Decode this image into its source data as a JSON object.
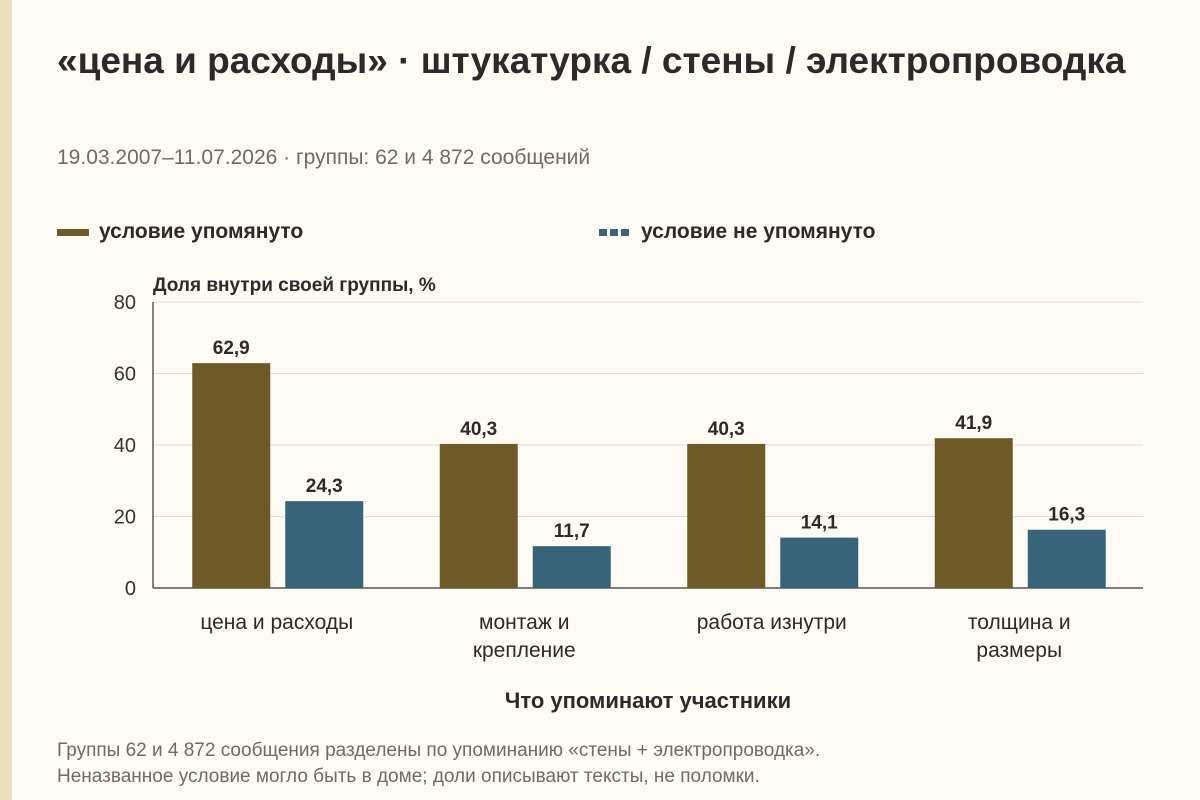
{
  "header": {
    "title": "«цена и расходы» · штукатурка / стены / электропроводка",
    "subtitle": "19.03.2007–11.07.2026 · группы: 62 и 4 872 сообщений"
  },
  "footnote": {
    "line1": "Группы 62 и 4 872 сообщения разделены по упоминанию «стены + электропроводка».",
    "line2": "Неназванное условие могло быть в доме; доли описывают тексты, не поломки."
  },
  "colors": {
    "series_a": "#6e5a27",
    "series_b": "#376479",
    "grid": "#dcdcdc",
    "axis": "#333333"
  },
  "chart_data": {
    "type": "bar",
    "title": "«цена и расходы» · штукатурка / стены / электропроводка",
    "subtitle": "19.03.2007–11.07.2026 · группы: 62 и 4 872 сообщений",
    "xlabel": "Что упоминают участники",
    "ylabel": "Доля внутри своей группы, %",
    "ylim": [
      0,
      80
    ],
    "yticks": [
      0,
      20,
      40,
      60,
      80
    ],
    "grid": true,
    "legend_position": "top",
    "categories": [
      [
        "цена и расходы"
      ],
      [
        "монтаж и",
        "крепление"
      ],
      [
        "работа изнутри"
      ],
      [
        "толщина и",
        "размеры"
      ]
    ],
    "series": [
      {
        "name": "условие упомянуто",
        "color": "#6e5a27",
        "values": [
          62.9,
          40.3,
          40.3,
          41.9
        ],
        "labels": [
          "62,9",
          "40,3",
          "40,3",
          "41,9"
        ]
      },
      {
        "name": "условие не упомянуто",
        "color": "#376479",
        "values": [
          24.3,
          11.7,
          14.1,
          16.3
        ],
        "labels": [
          "24,3",
          "11,7",
          "14,1",
          "16,3"
        ]
      }
    ]
  }
}
